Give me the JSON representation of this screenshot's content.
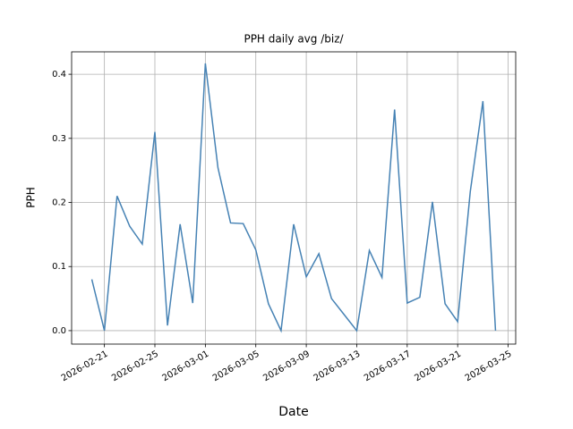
{
  "chart_data": {
    "type": "line",
    "title": "PPH daily avg /biz/",
    "x_label": "Date",
    "y_label": "PPH",
    "x": [
      "2026-02-20",
      "2026-02-21",
      "2026-02-22",
      "2026-02-23",
      "2026-02-24",
      "2026-02-25",
      "2026-02-26",
      "2026-02-27",
      "2026-02-28",
      "2026-03-01",
      "2026-03-02",
      "2026-03-03",
      "2026-03-04",
      "2026-03-05",
      "2026-03-06",
      "2026-03-07",
      "2026-03-08",
      "2026-03-09",
      "2026-03-10",
      "2026-03-11",
      "2026-03-12",
      "2026-03-13",
      "2026-03-14",
      "2026-03-15",
      "2026-03-16",
      "2026-03-17",
      "2026-03-18",
      "2026-03-19",
      "2026-03-20",
      "2026-03-21",
      "2026-03-22",
      "2026-03-23",
      "2026-03-24"
    ],
    "series": [
      {
        "name": "PPH",
        "color": "#4682b4",
        "values": [
          0.08,
          0,
          0.21,
          0.163,
          0.135,
          0.31,
          0.008,
          0.166,
          0.043,
          0.417,
          0.254,
          0.168,
          0.167,
          0.126,
          0.042,
          0,
          0.166,
          0.084,
          0.12,
          0.05,
          0.025,
          0,
          0.125,
          0.083,
          0.345,
          0.043,
          0.052,
          0.201,
          0.042,
          0.014,
          0.217,
          0.358,
          0
        ]
      }
    ],
    "xticks": [
      "2026-02-21",
      "2026-02-25",
      "2026-03-01",
      "2026-03-05",
      "2026-03-09",
      "2026-03-13",
      "2026-03-17",
      "2026-03-21",
      "2026-03-25"
    ],
    "ylim": [
      -0.021,
      0.435
    ],
    "yticks": [
      {
        "value": 0,
        "label": "0.0"
      },
      0.1,
      0.2,
      0.3,
      0.4
    ],
    "grid": true
  }
}
